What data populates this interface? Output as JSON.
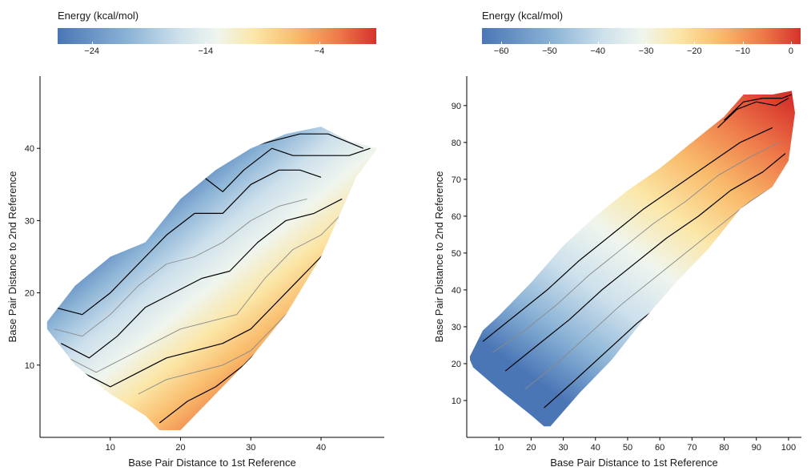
{
  "chart_data": [
    {
      "type": "heatmap",
      "legend": {
        "title": "Energy (kcal/mol)",
        "min": -27,
        "max": 1,
        "ticks": [
          -24,
          -14,
          -4
        ],
        "colors": [
          "#4a76b6",
          "#8bb3d6",
          "#cde0ec",
          "#eff5ee",
          "#fbe6a6",
          "#f9ba6a",
          "#ee7a4a",
          "#d7322a"
        ]
      },
      "xlabel": "Base Pair Distance to 1st Reference",
      "ylabel": "Base Pair Distance to 2nd Reference",
      "xlim": [
        0,
        49
      ],
      "ylim": [
        0,
        50
      ],
      "xticks": [
        10,
        20,
        30,
        40
      ],
      "yticks": [
        10,
        20,
        30,
        40
      ],
      "region": [
        [
          1,
          16
        ],
        [
          5,
          21
        ],
        [
          10,
          25
        ],
        [
          15,
          27
        ],
        [
          20,
          33
        ],
        [
          25,
          37
        ],
        [
          30,
          40
        ],
        [
          35,
          42
        ],
        [
          40,
          43
        ],
        [
          44,
          41
        ],
        [
          48,
          40
        ],
        [
          45,
          36
        ],
        [
          40,
          25
        ],
        [
          35,
          17
        ],
        [
          30,
          11
        ],
        [
          25,
          6
        ],
        [
          20,
          1
        ],
        [
          17,
          1
        ],
        [
          15,
          3
        ],
        [
          10,
          6
        ],
        [
          5,
          10
        ],
        [
          1,
          15
        ]
      ],
      "gradient_endpoints": [
        [
          15,
          33
        ],
        [
          38,
          6
        ]
      ],
      "contours": [
        {
          "color": "#000000",
          "points": [
            [
              2,
              18
            ],
            [
              6,
              17
            ],
            [
              10,
              20
            ],
            [
              14,
              24
            ],
            [
              18,
              28
            ],
            [
              22,
              31
            ],
            [
              26,
              31
            ],
            [
              30,
              35
            ],
            [
              34,
              37
            ],
            [
              37,
              37
            ],
            [
              40,
              36
            ]
          ]
        },
        {
          "color": "#8a8a8a",
          "points": [
            [
              2,
              15
            ],
            [
              6,
              14
            ],
            [
              10,
              17
            ],
            [
              14,
              21
            ],
            [
              18,
              24
            ],
            [
              22,
              25
            ],
            [
              26,
              27
            ],
            [
              30,
              30
            ],
            [
              34,
              32
            ],
            [
              38,
              33
            ]
          ]
        },
        {
          "color": "#000000",
          "points": [
            [
              3,
              13
            ],
            [
              7,
              11
            ],
            [
              11,
              14
            ],
            [
              15,
              18
            ],
            [
              19,
              20
            ],
            [
              23,
              22
            ],
            [
              27,
              23
            ],
            [
              31,
              27
            ],
            [
              35,
              30
            ],
            [
              39,
              31
            ],
            [
              43,
              33
            ]
          ]
        },
        {
          "color": "#8a8a8a",
          "points": [
            [
              4,
              11
            ],
            [
              8,
              9
            ],
            [
              12,
              11
            ],
            [
              16,
              13
            ],
            [
              20,
              15
            ],
            [
              24,
              16
            ],
            [
              28,
              17
            ],
            [
              32,
              22
            ],
            [
              36,
              26
            ],
            [
              40,
              28
            ],
            [
              44,
              32
            ]
          ]
        },
        {
          "color": "#000000",
          "points": [
            [
              6,
              9
            ],
            [
              10,
              7
            ],
            [
              14,
              9
            ],
            [
              18,
              11
            ],
            [
              22,
              12
            ],
            [
              26,
              13
            ],
            [
              30,
              15
            ],
            [
              34,
              19
            ],
            [
              38,
              23
            ],
            [
              42,
              27
            ],
            [
              45,
              31
            ]
          ]
        },
        {
          "color": "#8a8a8a",
          "points": [
            [
              14,
              6
            ],
            [
              18,
              8
            ],
            [
              22,
              9
            ],
            [
              26,
              10
            ],
            [
              30,
              12
            ],
            [
              34,
              16
            ],
            [
              38,
              20
            ],
            [
              42,
              25
            ],
            [
              45,
              29
            ]
          ]
        },
        {
          "color": "#000000",
          "points": [
            [
              17,
              2
            ],
            [
              21,
              5
            ],
            [
              25,
              7
            ],
            [
              29,
              10
            ],
            [
              33,
              14
            ],
            [
              37,
              18
            ],
            [
              41,
              23
            ],
            [
              44,
              27
            ]
          ]
        },
        {
          "color": "#000000",
          "points": [
            [
              17,
              36
            ],
            [
              21,
              39
            ],
            [
              25,
              40
            ],
            [
              29,
              40
            ],
            [
              33,
              41
            ],
            [
              37,
              42
            ],
            [
              41,
              42
            ],
            [
              46,
              40
            ]
          ]
        },
        {
          "color": "#000000",
          "points": [
            [
              19,
              35
            ],
            [
              22,
              37
            ],
            [
              26,
              34
            ],
            [
              29,
              37
            ],
            [
              33,
              40
            ],
            [
              36,
              39
            ],
            [
              40,
              39
            ],
            [
              44,
              39
            ],
            [
              47,
              40
            ]
          ]
        }
      ]
    },
    {
      "type": "heatmap",
      "legend": {
        "title": "Energy (kcal/mol)",
        "min": -64,
        "max": 2,
        "ticks": [
          -60,
          -50,
          -40,
          -30,
          -20,
          -10,
          0
        ],
        "colors": [
          "#4a76b6",
          "#8bb3d6",
          "#cde0ec",
          "#eff5ee",
          "#fbe6a6",
          "#f9ba6a",
          "#ee7a4a",
          "#d7322a"
        ]
      },
      "xlabel": "Base Pair Distance to 1st Reference",
      "ylabel": "Base Pair Distance to 2nd Reference",
      "xlim": [
        0,
        104
      ],
      "ylim": [
        0,
        98
      ],
      "xticks": [
        10,
        20,
        30,
        40,
        50,
        60,
        70,
        80,
        90,
        100
      ],
      "yticks": [
        10,
        20,
        30,
        40,
        50,
        60,
        70,
        80,
        90
      ],
      "region": [
        [
          1,
          22
        ],
        [
          5,
          29
        ],
        [
          10,
          33
        ],
        [
          20,
          42
        ],
        [
          30,
          52
        ],
        [
          40,
          60
        ],
        [
          50,
          67
        ],
        [
          60,
          73
        ],
        [
          70,
          80
        ],
        [
          80,
          87
        ],
        [
          86,
          93
        ],
        [
          95,
          93
        ],
        [
          101,
          94
        ],
        [
          102,
          88
        ],
        [
          100,
          75
        ],
        [
          95,
          68
        ],
        [
          85,
          62
        ],
        [
          75,
          51
        ],
        [
          65,
          42
        ],
        [
          55,
          32
        ],
        [
          45,
          21
        ],
        [
          35,
          12
        ],
        [
          26,
          3
        ],
        [
          24,
          3
        ],
        [
          20,
          6
        ],
        [
          10,
          13
        ],
        [
          2,
          19
        ],
        [
          1,
          21
        ]
      ],
      "gradient_endpoints": [
        [
          30,
          10
        ],
        [
          98,
          93
        ]
      ],
      "contours": [
        {
          "color": "#000000",
          "points": [
            [
              5,
              26
            ],
            [
              15,
              33
            ],
            [
              25,
              40
            ],
            [
              35,
              48
            ],
            [
              45,
              55
            ],
            [
              55,
              62
            ],
            [
              65,
              68
            ],
            [
              75,
              74
            ],
            [
              85,
              80
            ],
            [
              95,
              84
            ]
          ]
        },
        {
          "color": "#8a8a8a",
          "points": [
            [
              8,
              23
            ],
            [
              18,
              29
            ],
            [
              28,
              36
            ],
            [
              38,
              44
            ],
            [
              48,
              51
            ],
            [
              58,
              58
            ],
            [
              68,
              64
            ],
            [
              78,
              71
            ],
            [
              88,
              76
            ],
            [
              97,
              80
            ]
          ]
        },
        {
          "color": "#000000",
          "points": [
            [
              12,
              18
            ],
            [
              22,
              25
            ],
            [
              32,
              32
            ],
            [
              42,
              40
            ],
            [
              52,
              47
            ],
            [
              62,
              54
            ],
            [
              72,
              60
            ],
            [
              82,
              67
            ],
            [
              92,
              72
            ],
            [
              99,
              77
            ]
          ]
        },
        {
          "color": "#8a8a8a",
          "points": [
            [
              18,
              13
            ],
            [
              28,
              20
            ],
            [
              38,
              28
            ],
            [
              48,
              36
            ],
            [
              58,
              43
            ],
            [
              68,
              50
            ],
            [
              78,
              57
            ],
            [
              88,
              64
            ],
            [
              97,
              69
            ]
          ]
        },
        {
          "color": "#000000",
          "points": [
            [
              24,
              8
            ],
            [
              33,
              15
            ],
            [
              43,
              23
            ],
            [
              53,
              31
            ],
            [
              63,
              38
            ],
            [
              73,
              45
            ],
            [
              83,
              53
            ],
            [
              93,
              59
            ],
            [
              99,
              64
            ]
          ]
        },
        {
          "color": "#000000",
          "points": [
            [
              78,
              84
            ],
            [
              84,
              89
            ],
            [
              90,
              91
            ],
            [
              96,
              90
            ],
            [
              100,
              92
            ]
          ]
        },
        {
          "color": "#000000",
          "points": [
            [
              80,
              86
            ],
            [
              86,
              91
            ],
            [
              92,
              92
            ],
            [
              98,
              92
            ],
            [
              101,
              93
            ]
          ]
        }
      ]
    }
  ]
}
